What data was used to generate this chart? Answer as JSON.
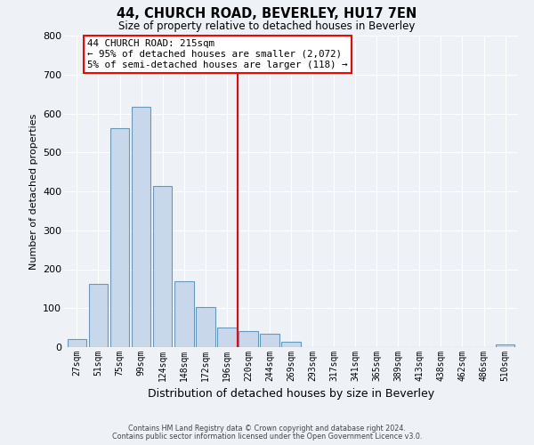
{
  "title": "44, CHURCH ROAD, BEVERLEY, HU17 7EN",
  "subtitle": "Size of property relative to detached houses in Beverley",
  "xlabel": "Distribution of detached houses by size in Beverley",
  "ylabel": "Number of detached properties",
  "bar_labels": [
    "27sqm",
    "51sqm",
    "75sqm",
    "99sqm",
    "124sqm",
    "148sqm",
    "172sqm",
    "196sqm",
    "220sqm",
    "244sqm",
    "269sqm",
    "293sqm",
    "317sqm",
    "341sqm",
    "365sqm",
    "389sqm",
    "413sqm",
    "438sqm",
    "462sqm",
    "486sqm",
    "510sqm"
  ],
  "bar_heights": [
    20,
    163,
    563,
    618,
    413,
    170,
    102,
    50,
    42,
    35,
    13,
    0,
    0,
    0,
    0,
    0,
    0,
    0,
    0,
    0,
    8
  ],
  "bar_color": "#c8d8ea",
  "bar_edge_color": "#6699bb",
  "vline_color": "red",
  "vline_x_index": 8,
  "annotation_title": "44 CHURCH ROAD: 215sqm",
  "annotation_line1": "← 95% of detached houses are smaller (2,072)",
  "annotation_line2": "5% of semi-detached houses are larger (118) →",
  "ylim": [
    0,
    800
  ],
  "yticks": [
    0,
    100,
    200,
    300,
    400,
    500,
    600,
    700,
    800
  ],
  "footer1": "Contains HM Land Registry data © Crown copyright and database right 2024.",
  "footer2": "Contains public sector information licensed under the Open Government Licence v3.0.",
  "background_color": "#eef2f7",
  "grid_color": "#ffffff"
}
